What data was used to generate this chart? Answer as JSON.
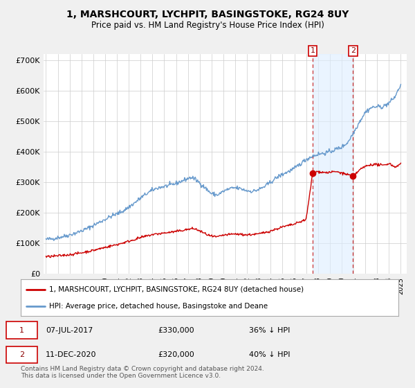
{
  "title": "1, MARSHCOURT, LYCHPIT, BASINGSTOKE, RG24 8UY",
  "subtitle": "Price paid vs. HM Land Registry's House Price Index (HPI)",
  "ylim": [
    0,
    720000
  ],
  "yticks": [
    0,
    100000,
    200000,
    300000,
    400000,
    500000,
    600000,
    700000
  ],
  "ytick_labels": [
    "£0",
    "£100K",
    "£200K",
    "£300K",
    "£400K",
    "£500K",
    "£600K",
    "£700K"
  ],
  "hpi_color": "#6699cc",
  "price_color": "#cc0000",
  "marker1_date": 2017.55,
  "marker1_price": 330000,
  "marker2_date": 2020.96,
  "marker2_price": 320000,
  "shade_color": "#ddeeff",
  "vline_color": "#cc3333",
  "legend_entry1": "1, MARSHCOURT, LYCHPIT, BASINGSTOKE, RG24 8UY (detached house)",
  "legend_entry2": "HPI: Average price, detached house, Basingstoke and Deane",
  "footer": "Contains HM Land Registry data © Crown copyright and database right 2024.\nThis data is licensed under the Open Government Licence v3.0.",
  "bg_color": "#f0f0f0",
  "plot_bg_color": "#ffffff",
  "xstart": 1995,
  "xend": 2025
}
